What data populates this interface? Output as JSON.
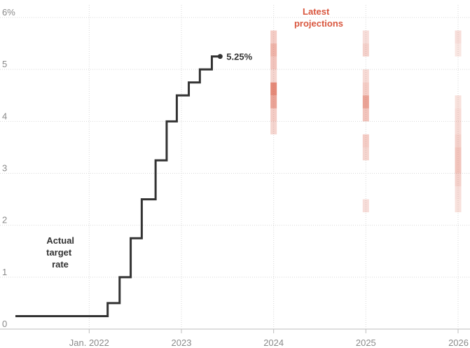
{
  "chart_data": {
    "type": "line",
    "colors": {
      "actual": "#333333",
      "projection": "#d9573f",
      "grid": "#d9d9d9",
      "tick_text": "#8a8a8a",
      "latest_label": "#d9573f"
    },
    "y_ticks": [
      {
        "value": 0,
        "label": "0"
      },
      {
        "value": 1,
        "label": "1"
      },
      {
        "value": 2,
        "label": "2"
      },
      {
        "value": 3,
        "label": "3"
      },
      {
        "value": 4,
        "label": "4"
      },
      {
        "value": 5,
        "label": "5"
      },
      {
        "value": 6,
        "label": "6%"
      }
    ],
    "x_ticks": [
      {
        "value": 2022.0,
        "label": "Jan. 2022"
      },
      {
        "value": 2023.0,
        "label": "2023"
      },
      {
        "value": 2024.0,
        "label": "2024"
      },
      {
        "value": 2025.0,
        "label": "2025"
      },
      {
        "value": 2026.0,
        "label": "2026"
      }
    ],
    "xlim": [
      2021.2,
      2026.0
    ],
    "ylim": [
      0,
      6.3
    ],
    "series": [
      {
        "name": "Actual target rate",
        "step": true,
        "points": [
          {
            "x": 2021.2,
            "y": 0.25
          },
          {
            "x": 2022.2,
            "y": 0.5
          },
          {
            "x": 2022.33,
            "y": 1.0
          },
          {
            "x": 2022.45,
            "y": 1.75
          },
          {
            "x": 2022.57,
            "y": 2.5
          },
          {
            "x": 2022.72,
            "y": 3.25
          },
          {
            "x": 2022.84,
            "y": 4.0
          },
          {
            "x": 2022.95,
            "y": 4.5
          },
          {
            "x": 2023.08,
            "y": 4.75
          },
          {
            "x": 2023.2,
            "y": 5.0
          },
          {
            "x": 2023.33,
            "y": 5.25
          },
          {
            "x": 2023.42,
            "y": 5.25
          }
        ]
      }
    ],
    "projections": [
      {
        "year": 2024,
        "cells": [
          {
            "low": 5.5,
            "high": 5.75,
            "intensity": 0.3
          },
          {
            "low": 5.25,
            "high": 5.5,
            "intensity": 0.45
          },
          {
            "low": 5.0,
            "high": 5.25,
            "intensity": 0.35
          },
          {
            "low": 4.75,
            "high": 5.0,
            "intensity": 0.25
          },
          {
            "low": 4.5,
            "high": 4.75,
            "intensity": 0.7
          },
          {
            "low": 4.25,
            "high": 4.5,
            "intensity": 0.55
          },
          {
            "low": 4.0,
            "high": 4.25,
            "intensity": 0.3
          },
          {
            "low": 3.75,
            "high": 4.0,
            "intensity": 0.25
          }
        ]
      },
      {
        "year": 2025,
        "cells": [
          {
            "low": 5.5,
            "high": 5.75,
            "intensity": 0.2
          },
          {
            "low": 5.25,
            "high": 5.5,
            "intensity": 0.28
          },
          {
            "low": 4.75,
            "high": 5.0,
            "intensity": 0.22
          },
          {
            "low": 4.5,
            "high": 4.75,
            "intensity": 0.3
          },
          {
            "low": 4.25,
            "high": 4.5,
            "intensity": 0.55
          },
          {
            "low": 4.0,
            "high": 4.25,
            "intensity": 0.35
          },
          {
            "low": 3.5,
            "high": 3.75,
            "intensity": 0.3
          },
          {
            "low": 3.25,
            "high": 3.5,
            "intensity": 0.25
          },
          {
            "low": 2.25,
            "high": 2.5,
            "intensity": 0.2
          }
        ]
      },
      {
        "year": 2026,
        "cells": [
          {
            "low": 5.5,
            "high": 5.75,
            "intensity": 0.2
          },
          {
            "low": 5.25,
            "high": 5.5,
            "intensity": 0.15
          },
          {
            "low": 4.25,
            "high": 4.5,
            "intensity": 0.18
          },
          {
            "low": 4.0,
            "high": 4.25,
            "intensity": 0.22
          },
          {
            "low": 3.75,
            "high": 4.0,
            "intensity": 0.22
          },
          {
            "low": 3.5,
            "high": 3.75,
            "intensity": 0.28
          },
          {
            "low": 3.0,
            "high": 3.5,
            "intensity": 0.35
          },
          {
            "low": 2.75,
            "high": 3.0,
            "intensity": 0.28
          },
          {
            "low": 2.5,
            "high": 2.75,
            "intensity": 0.2
          },
          {
            "low": 2.25,
            "high": 2.5,
            "intensity": 0.18
          }
        ]
      }
    ],
    "annotations": {
      "latest_projections": [
        "Latest",
        "projections"
      ],
      "actual_target_rate": [
        "Actual",
        "target",
        "rate"
      ],
      "end_value": "5.25%"
    }
  }
}
